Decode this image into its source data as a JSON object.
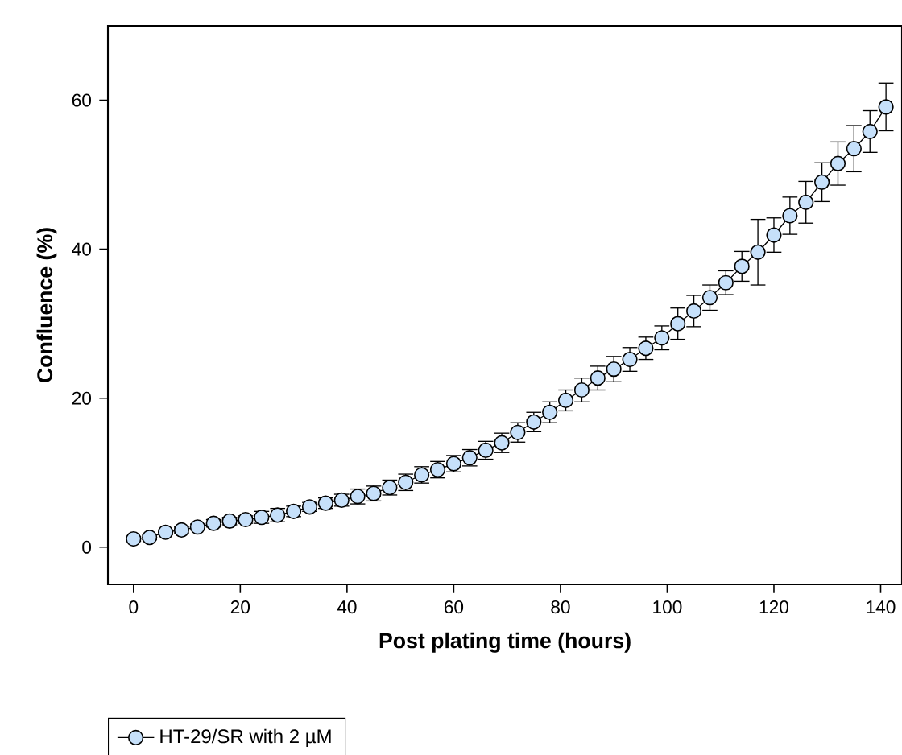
{
  "chart_data": {
    "type": "line",
    "xlabel": "Post plating time (hours)",
    "ylabel": "Confluence (%)",
    "x": [
      0,
      3,
      6,
      9,
      12,
      15,
      18,
      21,
      24,
      27,
      30,
      33,
      36,
      39,
      42,
      45,
      48,
      51,
      54,
      57,
      60,
      63,
      66,
      69,
      72,
      75,
      78,
      81,
      84,
      87,
      90,
      93,
      96,
      99,
      102,
      105,
      108,
      111,
      114,
      117,
      120,
      123,
      126,
      129,
      132,
      135,
      138,
      141
    ],
    "series": [
      {
        "name": "HT-29/SR with 2 µM",
        "color": "#c6e0fa",
        "values": [
          1.1,
          1.3,
          2.0,
          2.3,
          2.7,
          3.2,
          3.5,
          3.7,
          4.0,
          4.3,
          4.8,
          5.4,
          5.9,
          6.3,
          6.8,
          7.2,
          8.0,
          8.7,
          9.7,
          10.4,
          11.2,
          12.0,
          13.0,
          14.0,
          15.4,
          16.8,
          18.1,
          19.7,
          21.1,
          22.7,
          23.9,
          25.2,
          26.7,
          28.1,
          30.0,
          31.7,
          33.5,
          35.5,
          37.7,
          39.6,
          41.9,
          44.5,
          46.3,
          49.0,
          51.5,
          53.5,
          55.8,
          59.1
        ],
        "errors": [
          0.3,
          0.3,
          0.3,
          0.4,
          0.4,
          0.5,
          0.5,
          0.5,
          0.8,
          0.9,
          0.7,
          0.6,
          0.7,
          0.8,
          1.0,
          1.0,
          1.0,
          1.1,
          1.1,
          1.1,
          1.1,
          1.1,
          1.2,
          1.3,
          1.3,
          1.3,
          1.4,
          1.4,
          1.6,
          1.6,
          1.7,
          1.6,
          1.5,
          1.6,
          2.1,
          2.1,
          1.7,
          1.6,
          2.0,
          4.4,
          2.3,
          2.5,
          2.8,
          2.6,
          2.9,
          3.1,
          2.8,
          3.2
        ]
      }
    ],
    "xlim": [
      -4.8,
      144
    ],
    "ylim": [
      -5,
      70
    ],
    "xticks": [
      0,
      20,
      40,
      60,
      80,
      100,
      120,
      140
    ],
    "yticks": [
      0,
      20,
      40,
      60
    ],
    "marker": "circle",
    "line_style": "solid",
    "grid": false,
    "legend": "bottom left"
  }
}
